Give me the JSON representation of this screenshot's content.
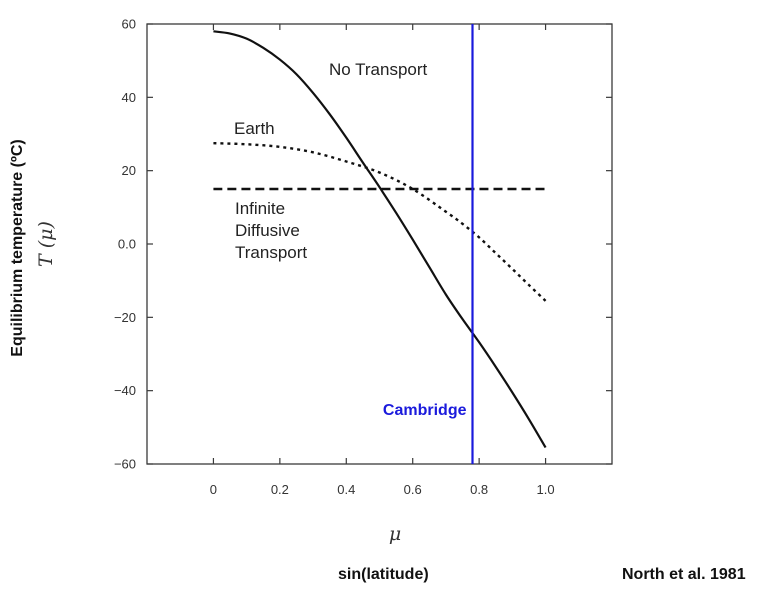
{
  "chart_data": {
    "type": "line",
    "xlabel_symbol": "μ",
    "xlabel": "sin(latitude)",
    "ylabel_symbol": "T (μ)",
    "ylabel": "Equilibrium temperature (ºC)",
    "credit": "North et al. 1981",
    "xlim": [
      -0.2,
      1.2
    ],
    "ylim": [
      -60,
      60
    ],
    "x_ticks": [
      0,
      0.2,
      0.4,
      0.6,
      0.8,
      1.0
    ],
    "x_tick_labels": [
      "0",
      "0.2",
      "0.4",
      "0.6",
      "0.8",
      "1.0"
    ],
    "y_ticks": [
      60,
      40,
      20,
      0,
      -20,
      -40,
      -60
    ],
    "y_tick_labels": [
      "60",
      "40",
      "20",
      "0.0",
      "−20",
      "−40",
      "−60"
    ],
    "grid": false,
    "series": [
      {
        "name": "No Transport",
        "style": "solid",
        "x": [
          0.0,
          0.05,
          0.1,
          0.15,
          0.2,
          0.25,
          0.3,
          0.35,
          0.4,
          0.45,
          0.5,
          0.55,
          0.6,
          0.65,
          0.7,
          0.75,
          0.8,
          0.85,
          0.9,
          0.95,
          1.0
        ],
        "y": [
          58,
          57.4,
          56,
          53.5,
          50.3,
          46.3,
          41.2,
          35.4,
          29,
          22.2,
          15.5,
          8.5,
          1.2,
          -6.3,
          -13.8,
          -20.5,
          -26.8,
          -33.5,
          -40.5,
          -47.8,
          -55.5
        ]
      },
      {
        "name": "Earth",
        "style": "dotted",
        "x": [
          0.0,
          0.1,
          0.2,
          0.3,
          0.4,
          0.5,
          0.6,
          0.7,
          0.75,
          0.8,
          0.85,
          0.9,
          0.95,
          1.0
        ],
        "y": [
          27.5,
          27.2,
          26.5,
          25,
          22.5,
          19.5,
          15,
          8.8,
          5.5,
          1.8,
          -2.5,
          -6.8,
          -11.2,
          -15.5
        ]
      },
      {
        "name": "Infinite Diffusive Transport",
        "label_lines": [
          "Infinite",
          "Diffusive",
          "Transport"
        ],
        "style": "dashed",
        "x": [
          0.0,
          1.0
        ],
        "y": [
          15,
          15
        ]
      }
    ],
    "annotations": [
      {
        "type": "vline",
        "x": 0.78,
        "label": "Cambridge",
        "color": "#1a1adc"
      }
    ]
  }
}
